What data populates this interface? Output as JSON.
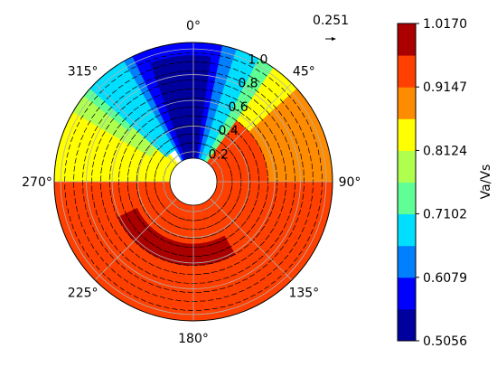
{
  "chart_data": {
    "type": "heatmap",
    "projection": "polar",
    "theta_zero": "north",
    "theta_direction": "clockwise",
    "theta_ticks": [
      "0°",
      "45°",
      "90°",
      "135°",
      "180°",
      "225°",
      "270°",
      "315°"
    ],
    "r_range": [
      0.15,
      1.05
    ],
    "r_ticks": [
      "0.2",
      "0.4",
      "0.6",
      "0.8",
      "1.0"
    ],
    "grid": true,
    "quiver_key": "0.251",
    "colorbar": {
      "label": "Va/Vs",
      "min": 0.5056,
      "max": 1.017,
      "tick_labels": [
        "1.0170",
        "0.9147",
        "0.8124",
        "0.7102",
        "0.6079",
        "0.5056"
      ],
      "levels": [
        0.5056,
        0.5568,
        0.6079,
        0.6591,
        0.7102,
        0.7613,
        0.8124,
        0.8636,
        0.9147,
        0.9659,
        1.017
      ],
      "colors": [
        "#00009f",
        "#0000ff",
        "#0080ff",
        "#00dfff",
        "#60ff96",
        "#afff4f",
        "#ffff00",
        "#ff8c00",
        "#ff4000",
        "#aa0000"
      ]
    },
    "regions": [
      {
        "level": 9,
        "color": "#ff4000",
        "theta": [
          90,
          270
        ],
        "r": [
          0.15,
          1.05
        ]
      },
      {
        "level": 9,
        "color": "#ff4000",
        "theta": [
          30,
          90
        ],
        "r": [
          0.15,
          0.55
        ]
      },
      {
        "level": 8,
        "color": "#ff8c00",
        "theta": [
          40,
          90
        ],
        "r": [
          0.55,
          1.05
        ]
      },
      {
        "level": 7,
        "color": "#ffff00",
        "theta": [
          270,
          320
        ],
        "r": [
          0.15,
          1.05
        ]
      },
      {
        "level": 7,
        "color": "#ffff00",
        "theta": [
          32,
          48
        ],
        "r": [
          0.55,
          1.05
        ]
      },
      {
        "level": 6,
        "color": "#afff4f",
        "theta": [
          300,
          332
        ],
        "r": [
          0.35,
          1.05
        ]
      },
      {
        "level": 5,
        "color": "#60ff96",
        "theta": [
          308,
          338
        ],
        "r": [
          0.6,
          1.05
        ]
      },
      {
        "level": 5,
        "color": "#60ff96",
        "theta": [
          10,
          35
        ],
        "r": [
          0.15,
          1.05
        ]
      },
      {
        "level": 4,
        "color": "#00dfff",
        "theta": [
          312,
          345
        ],
        "r": [
          0.25,
          1.05
        ]
      },
      {
        "level": 4,
        "color": "#00dfff",
        "theta": [
          6,
          28
        ],
        "r": [
          0.15,
          1.05
        ]
      },
      {
        "level": 3,
        "color": "#0080ff",
        "theta": [
          330,
          18
        ],
        "r": [
          0.15,
          1.05
        ]
      },
      {
        "level": 2,
        "color": "#0000ff",
        "theta": [
          334,
          12
        ],
        "r": [
          0.15,
          1.05
        ]
      },
      {
        "level": 1,
        "color": "#00009f",
        "theta": [
          340,
          8
        ],
        "r": [
          0.15,
          0.95
        ]
      },
      {
        "level": 10,
        "color": "#aa0000",
        "theta": [
          150,
          245
        ],
        "r": [
          0.45,
          0.62
        ]
      }
    ]
  }
}
